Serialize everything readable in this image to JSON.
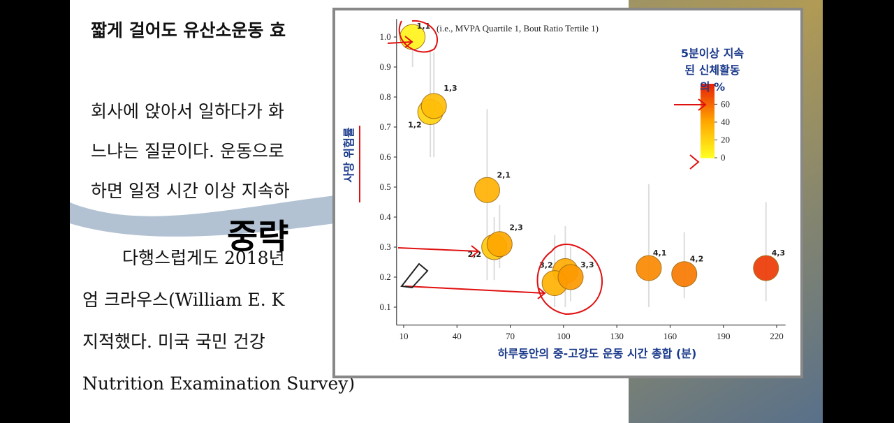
{
  "chart_data": {
    "type": "bubble",
    "annotation": "(i.e., MVPA Quartile 1, Bout Ratio Tertile 1)",
    "x_label": "하루동안의 중-고강도 운동 시간 총합 (분)",
    "y_label": "사망 위험률",
    "legend_title": [
      "5분이상 지속",
      "된 신체활동",
      "의 %"
    ],
    "labels": [
      "1,1",
      "1,2",
      "1,3",
      "2,1",
      "2,2",
      "2,3",
      null,
      "3,2",
      "3,3",
      "4,1",
      "4,2",
      "4,3"
    ],
    "x": [
      15,
      25,
      27,
      57,
      61,
      64,
      101,
      95,
      104,
      148,
      168,
      214
    ],
    "values": [
      1.0,
      0.75,
      0.77,
      0.49,
      0.3,
      0.31,
      0.22,
      0.18,
      0.2,
      0.23,
      0.21,
      0.23
    ],
    "error_low": [
      0.9,
      0.6,
      0.6,
      0.19,
      0.19,
      0.23,
      0.1,
      0.1,
      0.12,
      0.1,
      0.13,
      0.12
    ],
    "error_high": [
      1.0,
      0.95,
      0.95,
      0.76,
      0.4,
      0.44,
      0.37,
      0.34,
      0.3,
      0.51,
      0.35,
      0.45
    ],
    "color_values": [
      5,
      20,
      30,
      35,
      25,
      40,
      38,
      35,
      45,
      50,
      55,
      75
    ],
    "colorscale": [
      "#ffff20",
      "#ffa500",
      "#e82008"
    ],
    "clim": [
      0,
      83
    ],
    "cticks": [
      0,
      20,
      40,
      60
    ],
    "xlim": [
      6,
      225
    ],
    "xticks": [
      10,
      40,
      70,
      100,
      130,
      160,
      190,
      220
    ],
    "ylim": [
      0.04,
      1.06
    ],
    "yticks": [
      0.1,
      0.2,
      0.3,
      0.4,
      0.5,
      0.6,
      0.7,
      0.8,
      0.9,
      {
        "value": 1.0,
        "label": "1.0"
      }
    ]
  },
  "document": {
    "title": "짧게 걸어도 유산소운동 효",
    "lines": [
      "회사에 앉아서 일하다가 화",
      "느냐는 질문이다. 운동으로",
      "하면 일정 시간 이상 지속하",
      "다행스럽게도 2018년",
      "엄 크라우스(William E. K",
      "지적했다. 미국 국민 건강",
      "Nutrition Examination Survey)"
    ],
    "overlay": "중략"
  }
}
